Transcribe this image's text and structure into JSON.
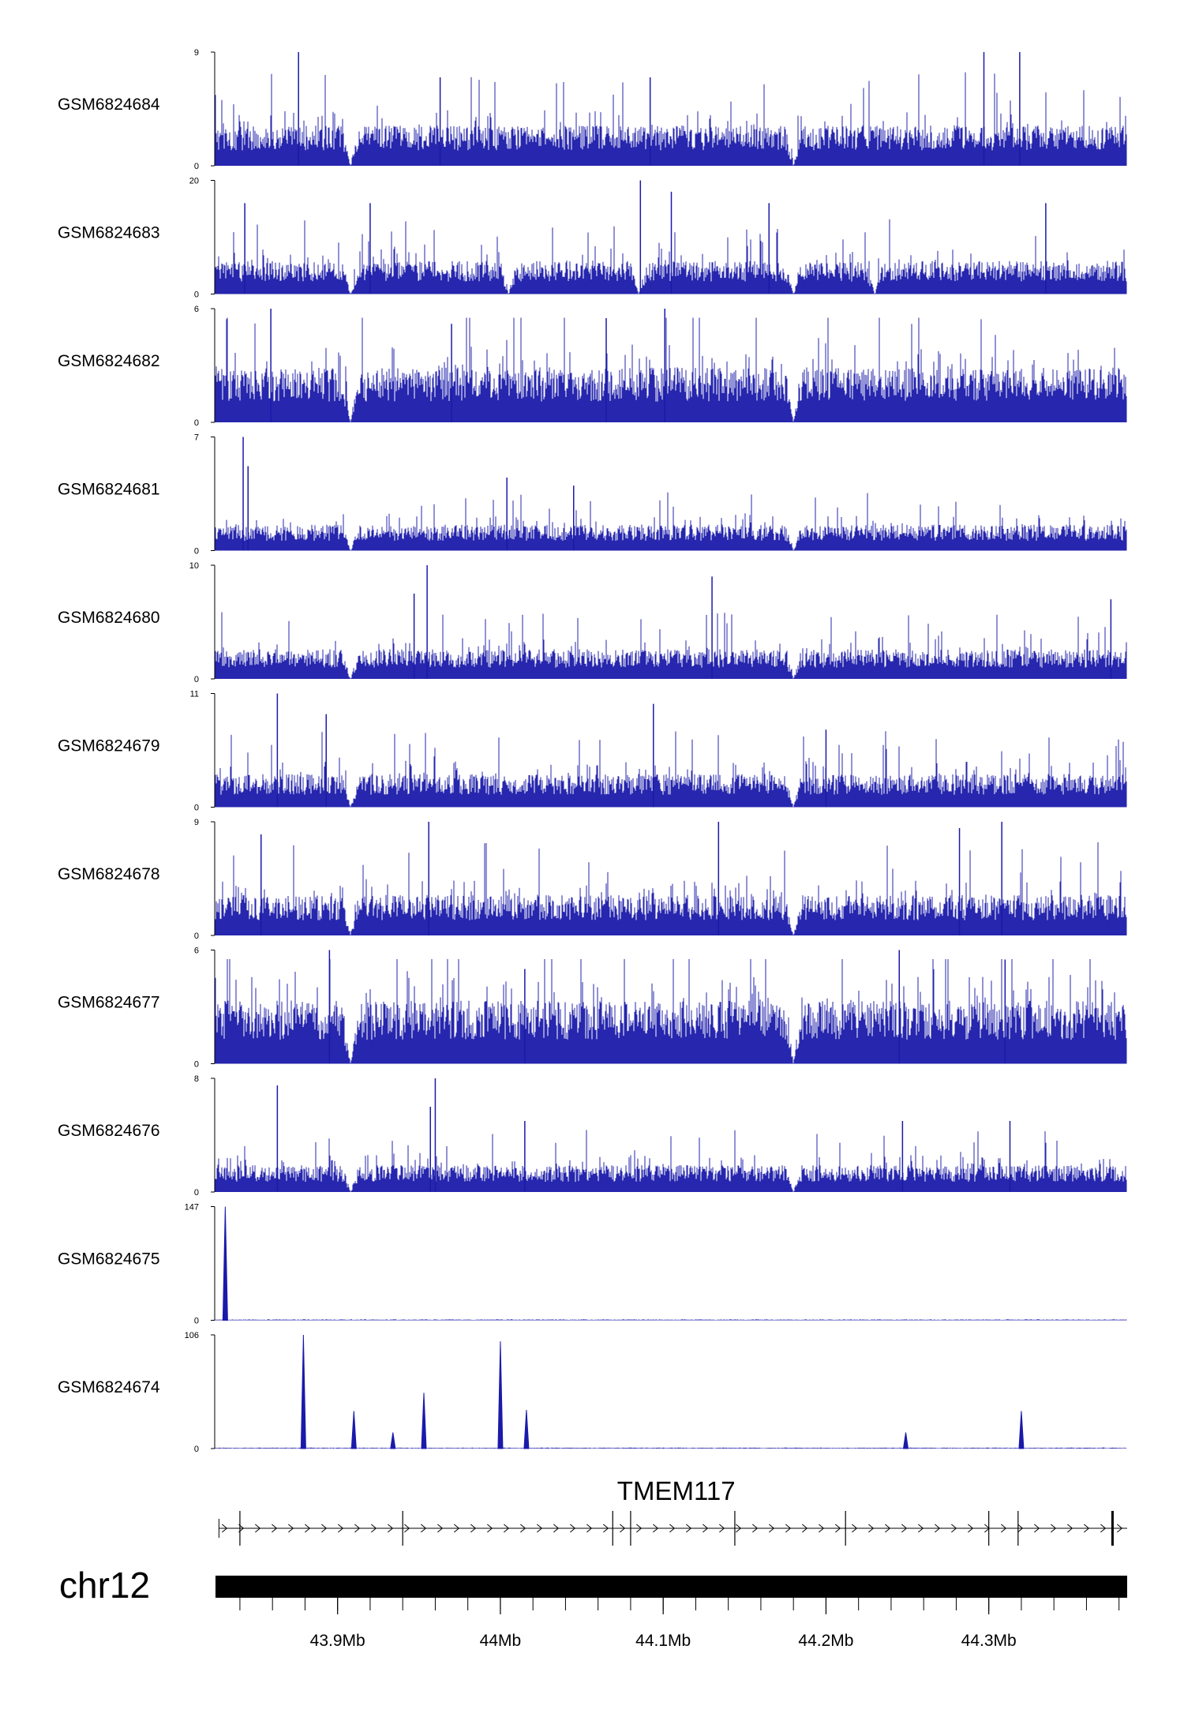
{
  "chart_data": {
    "type": "genome-browser-coverage-tracks",
    "chromosome": "chr12",
    "region_mb": [
      43.825,
      44.385
    ],
    "tracks": [
      {
        "name": "GSM6824684",
        "ymax": 9,
        "ymin": 0,
        "baseline": 2.2,
        "gaps_mb": [
          43.908,
          44.18
        ],
        "peaks": [
          {
            "pos": 43.876,
            "height": 9
          },
          {
            "pos": 44.297,
            "height": 9
          },
          {
            "pos": 44.319,
            "height": 9
          },
          {
            "pos": 43.963,
            "height": 7
          },
          {
            "pos": 44.092,
            "height": 7
          }
        ]
      },
      {
        "name": "GSM6824683",
        "ymax": 20,
        "ymin": 0,
        "baseline": 4,
        "gaps_mb": [
          43.908,
          44.005,
          44.085,
          44.18,
          44.23
        ],
        "peaks": [
          {
            "pos": 44.086,
            "height": 20
          },
          {
            "pos": 44.105,
            "height": 18
          },
          {
            "pos": 43.843,
            "height": 16
          },
          {
            "pos": 43.92,
            "height": 16
          },
          {
            "pos": 44.165,
            "height": 16
          },
          {
            "pos": 44.335,
            "height": 16
          }
        ]
      },
      {
        "name": "GSM6824682",
        "ymax": 6,
        "ymin": 0,
        "baseline": 2,
        "gaps_mb": [
          43.908,
          44.18
        ],
        "peaks": [
          {
            "pos": 43.859,
            "height": 6
          },
          {
            "pos": 44.101,
            "height": 6
          },
          {
            "pos": 44.065,
            "height": 5.5
          },
          {
            "pos": 43.97,
            "height": 5.2
          }
        ]
      },
      {
        "name": "GSM6824681",
        "ymax": 7,
        "ymin": 0,
        "baseline": 1.1,
        "gaps_mb": [
          43.908,
          44.18
        ],
        "peaks": [
          {
            "pos": 43.842,
            "height": 7
          },
          {
            "pos": 43.845,
            "height": 5.2
          },
          {
            "pos": 44.004,
            "height": 4.5
          },
          {
            "pos": 44.045,
            "height": 4
          }
        ]
      },
      {
        "name": "GSM6824680",
        "ymax": 10,
        "ymin": 0,
        "baseline": 1.8,
        "gaps_mb": [
          43.908,
          44.18
        ],
        "peaks": [
          {
            "pos": 43.955,
            "height": 10
          },
          {
            "pos": 43.947,
            "height": 7.5
          },
          {
            "pos": 44.13,
            "height": 9
          },
          {
            "pos": 44.375,
            "height": 7
          }
        ]
      },
      {
        "name": "GSM6824679",
        "ymax": 11,
        "ymin": 0,
        "baseline": 2.2,
        "gaps_mb": [
          43.908,
          44.18
        ],
        "peaks": [
          {
            "pos": 43.863,
            "height": 11
          },
          {
            "pos": 44.094,
            "height": 10
          },
          {
            "pos": 43.893,
            "height": 9
          },
          {
            "pos": 44.2,
            "height": 7.5
          }
        ]
      },
      {
        "name": "GSM6824678",
        "ymax": 9,
        "ymin": 0,
        "baseline": 2.2,
        "gaps_mb": [
          43.908,
          44.18
        ],
        "peaks": [
          {
            "pos": 43.956,
            "height": 9
          },
          {
            "pos": 44.134,
            "height": 9
          },
          {
            "pos": 44.308,
            "height": 9
          },
          {
            "pos": 44.282,
            "height": 8.5
          },
          {
            "pos": 43.853,
            "height": 8
          }
        ]
      },
      {
        "name": "GSM6824677",
        "ymax": 6,
        "ymin": 0,
        "baseline": 2.3,
        "gaps_mb": [
          43.908,
          44.18
        ],
        "peaks": [
          {
            "pos": 43.895,
            "height": 6
          },
          {
            "pos": 44.245,
            "height": 6
          },
          {
            "pos": 44.31,
            "height": 5.5
          },
          {
            "pos": 44.015,
            "height": 5
          }
        ]
      },
      {
        "name": "GSM6824676",
        "ymax": 8,
        "ymin": 0,
        "baseline": 1.3,
        "gaps_mb": [
          43.908,
          44.18
        ],
        "peaks": [
          {
            "pos": 43.96,
            "height": 8
          },
          {
            "pos": 43.863,
            "height": 7.5
          },
          {
            "pos": 43.957,
            "height": 6
          },
          {
            "pos": 44.015,
            "height": 5
          },
          {
            "pos": 44.247,
            "height": 5
          },
          {
            "pos": 44.313,
            "height": 5
          }
        ]
      },
      {
        "name": "GSM6824675",
        "ymax": 147,
        "ymin": 0,
        "baseline": 1,
        "gaps_mb": [],
        "peaks": [
          {
            "pos": 43.831,
            "height": 147
          }
        ]
      },
      {
        "name": "GSM6824674",
        "ymax": 106,
        "ymin": 0,
        "baseline": 1,
        "gaps_mb": [],
        "peaks": [
          {
            "pos": 43.879,
            "height": 106
          },
          {
            "pos": 44.0,
            "height": 100
          },
          {
            "pos": 43.953,
            "height": 52
          },
          {
            "pos": 43.91,
            "height": 35
          },
          {
            "pos": 44.016,
            "height": 36
          },
          {
            "pos": 44.32,
            "height": 35
          },
          {
            "pos": 43.934,
            "height": 15
          },
          {
            "pos": 44.249,
            "height": 15
          }
        ]
      }
    ],
    "gene": {
      "name": "TMEM117",
      "start_mb": 43.831,
      "end_mb": 44.385,
      "strand": "+",
      "exons_mb": [
        43.84,
        43.94,
        44.069,
        44.08,
        44.144,
        44.212,
        44.3,
        44.318,
        44.376
      ]
    },
    "axis": {
      "major_ticks_mb": [
        43.9,
        44.0,
        44.1,
        44.2,
        44.3
      ],
      "tick_labels": [
        "43.9Mb",
        "44Mb",
        "44.1Mb",
        "44.2Mb",
        "44.3Mb"
      ],
      "minor_step_mb": 0.02
    },
    "colors": {
      "signal": "#1a1aaa",
      "signal_dark": "#000080",
      "ink": "#000000"
    }
  }
}
